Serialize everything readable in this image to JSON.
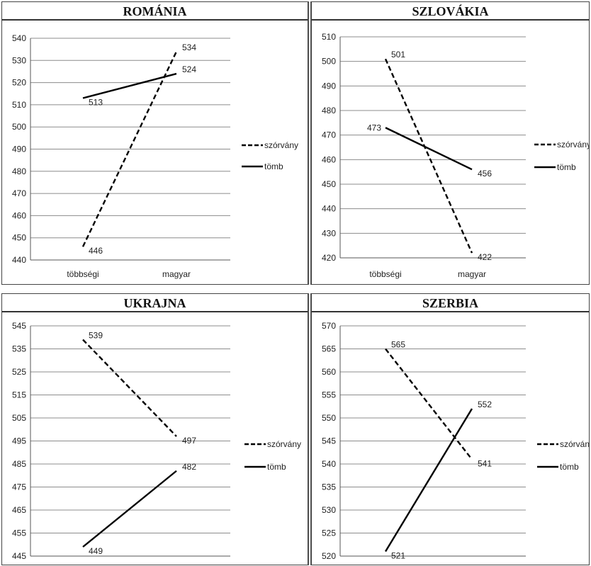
{
  "chart_data": [
    {
      "type": "line",
      "title": "ROMÁNIA",
      "categories": [
        "többségi",
        "magyar"
      ],
      "ylim": [
        440,
        540
      ],
      "yticks": [
        440,
        450,
        460,
        470,
        480,
        490,
        500,
        510,
        520,
        530,
        540
      ],
      "series": [
        {
          "name": "szórvány",
          "values": [
            446,
            534
          ],
          "style": "dashed"
        },
        {
          "name": "tömb",
          "values": [
            513,
            524
          ],
          "style": "solid"
        }
      ],
      "grid": true,
      "legend": "right"
    },
    {
      "type": "line",
      "title": "SZLOVÁKIA",
      "categories": [
        "többségi",
        "magyar"
      ],
      "ylim": [
        420,
        510
      ],
      "yticks": [
        420,
        430,
        440,
        450,
        460,
        470,
        480,
        490,
        500,
        510
      ],
      "series": [
        {
          "name": "szórvány",
          "values": [
            501,
            422
          ],
          "style": "dashed"
        },
        {
          "name": "tömb",
          "values": [
            473,
            456
          ],
          "style": "solid"
        }
      ],
      "grid": true,
      "legend": "right"
    },
    {
      "type": "line",
      "title": "UKRAJNA",
      "categories": [
        "többségi",
        "magyar"
      ],
      "ylim": [
        445,
        545
      ],
      "yticks": [
        445,
        455,
        465,
        475,
        485,
        495,
        505,
        515,
        525,
        535,
        545
      ],
      "series": [
        {
          "name": "szórvány",
          "values": [
            539,
            497
          ],
          "style": "dashed"
        },
        {
          "name": "tömb",
          "values": [
            449,
            482
          ],
          "style": "solid"
        }
      ],
      "grid": true,
      "legend": "right"
    },
    {
      "type": "line",
      "title": "SZERBIA",
      "categories": [
        "többségi",
        "magyar"
      ],
      "ylim": [
        520,
        570
      ],
      "yticks": [
        520,
        525,
        530,
        535,
        540,
        545,
        550,
        555,
        560,
        565,
        570
      ],
      "series": [
        {
          "name": "szórvány",
          "values": [
            565,
            541
          ],
          "style": "dashed"
        },
        {
          "name": "tömb",
          "values": [
            521,
            552
          ],
          "style": "solid"
        }
      ],
      "grid": true,
      "legend": "right"
    }
  ]
}
